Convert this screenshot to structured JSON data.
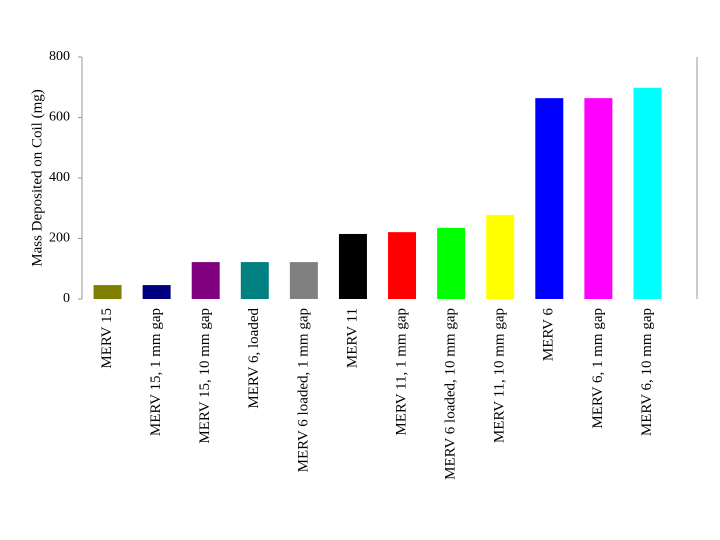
{
  "chart_data": {
    "type": "bar",
    "y_label": "Mass Deposited on Coil (mg)",
    "categories": [
      "MERV 15",
      "MERV 15, 1 mm gap",
      "MERV 15, 10 mm gap",
      "MERV 6, loaded",
      "MERV 6 loaded, 1 mm gap",
      "MERV 11",
      "MERV 11, 1 mm gap",
      "MERV 6 loaded, 10 mm gap",
      "MERV 11, 10 mm gap",
      "MERV 6",
      "MERV 6, 1 mm gap",
      "MERV 6, 10 mm gap"
    ],
    "values": [
      46,
      46,
      122,
      122,
      122,
      215,
      221,
      235,
      278,
      664,
      664,
      698
    ],
    "colors": [
      "#808000",
      "#000080",
      "#800080",
      "#008080",
      "#808080",
      "#000000",
      "#ff0000",
      "#00ff00",
      "#ffff00",
      "#0000ff",
      "#ff00ff",
      "#00ffff"
    ],
    "ylim": [
      0,
      800
    ],
    "yticks": [
      0,
      200,
      400,
      600,
      800
    ],
    "grid": false
  }
}
